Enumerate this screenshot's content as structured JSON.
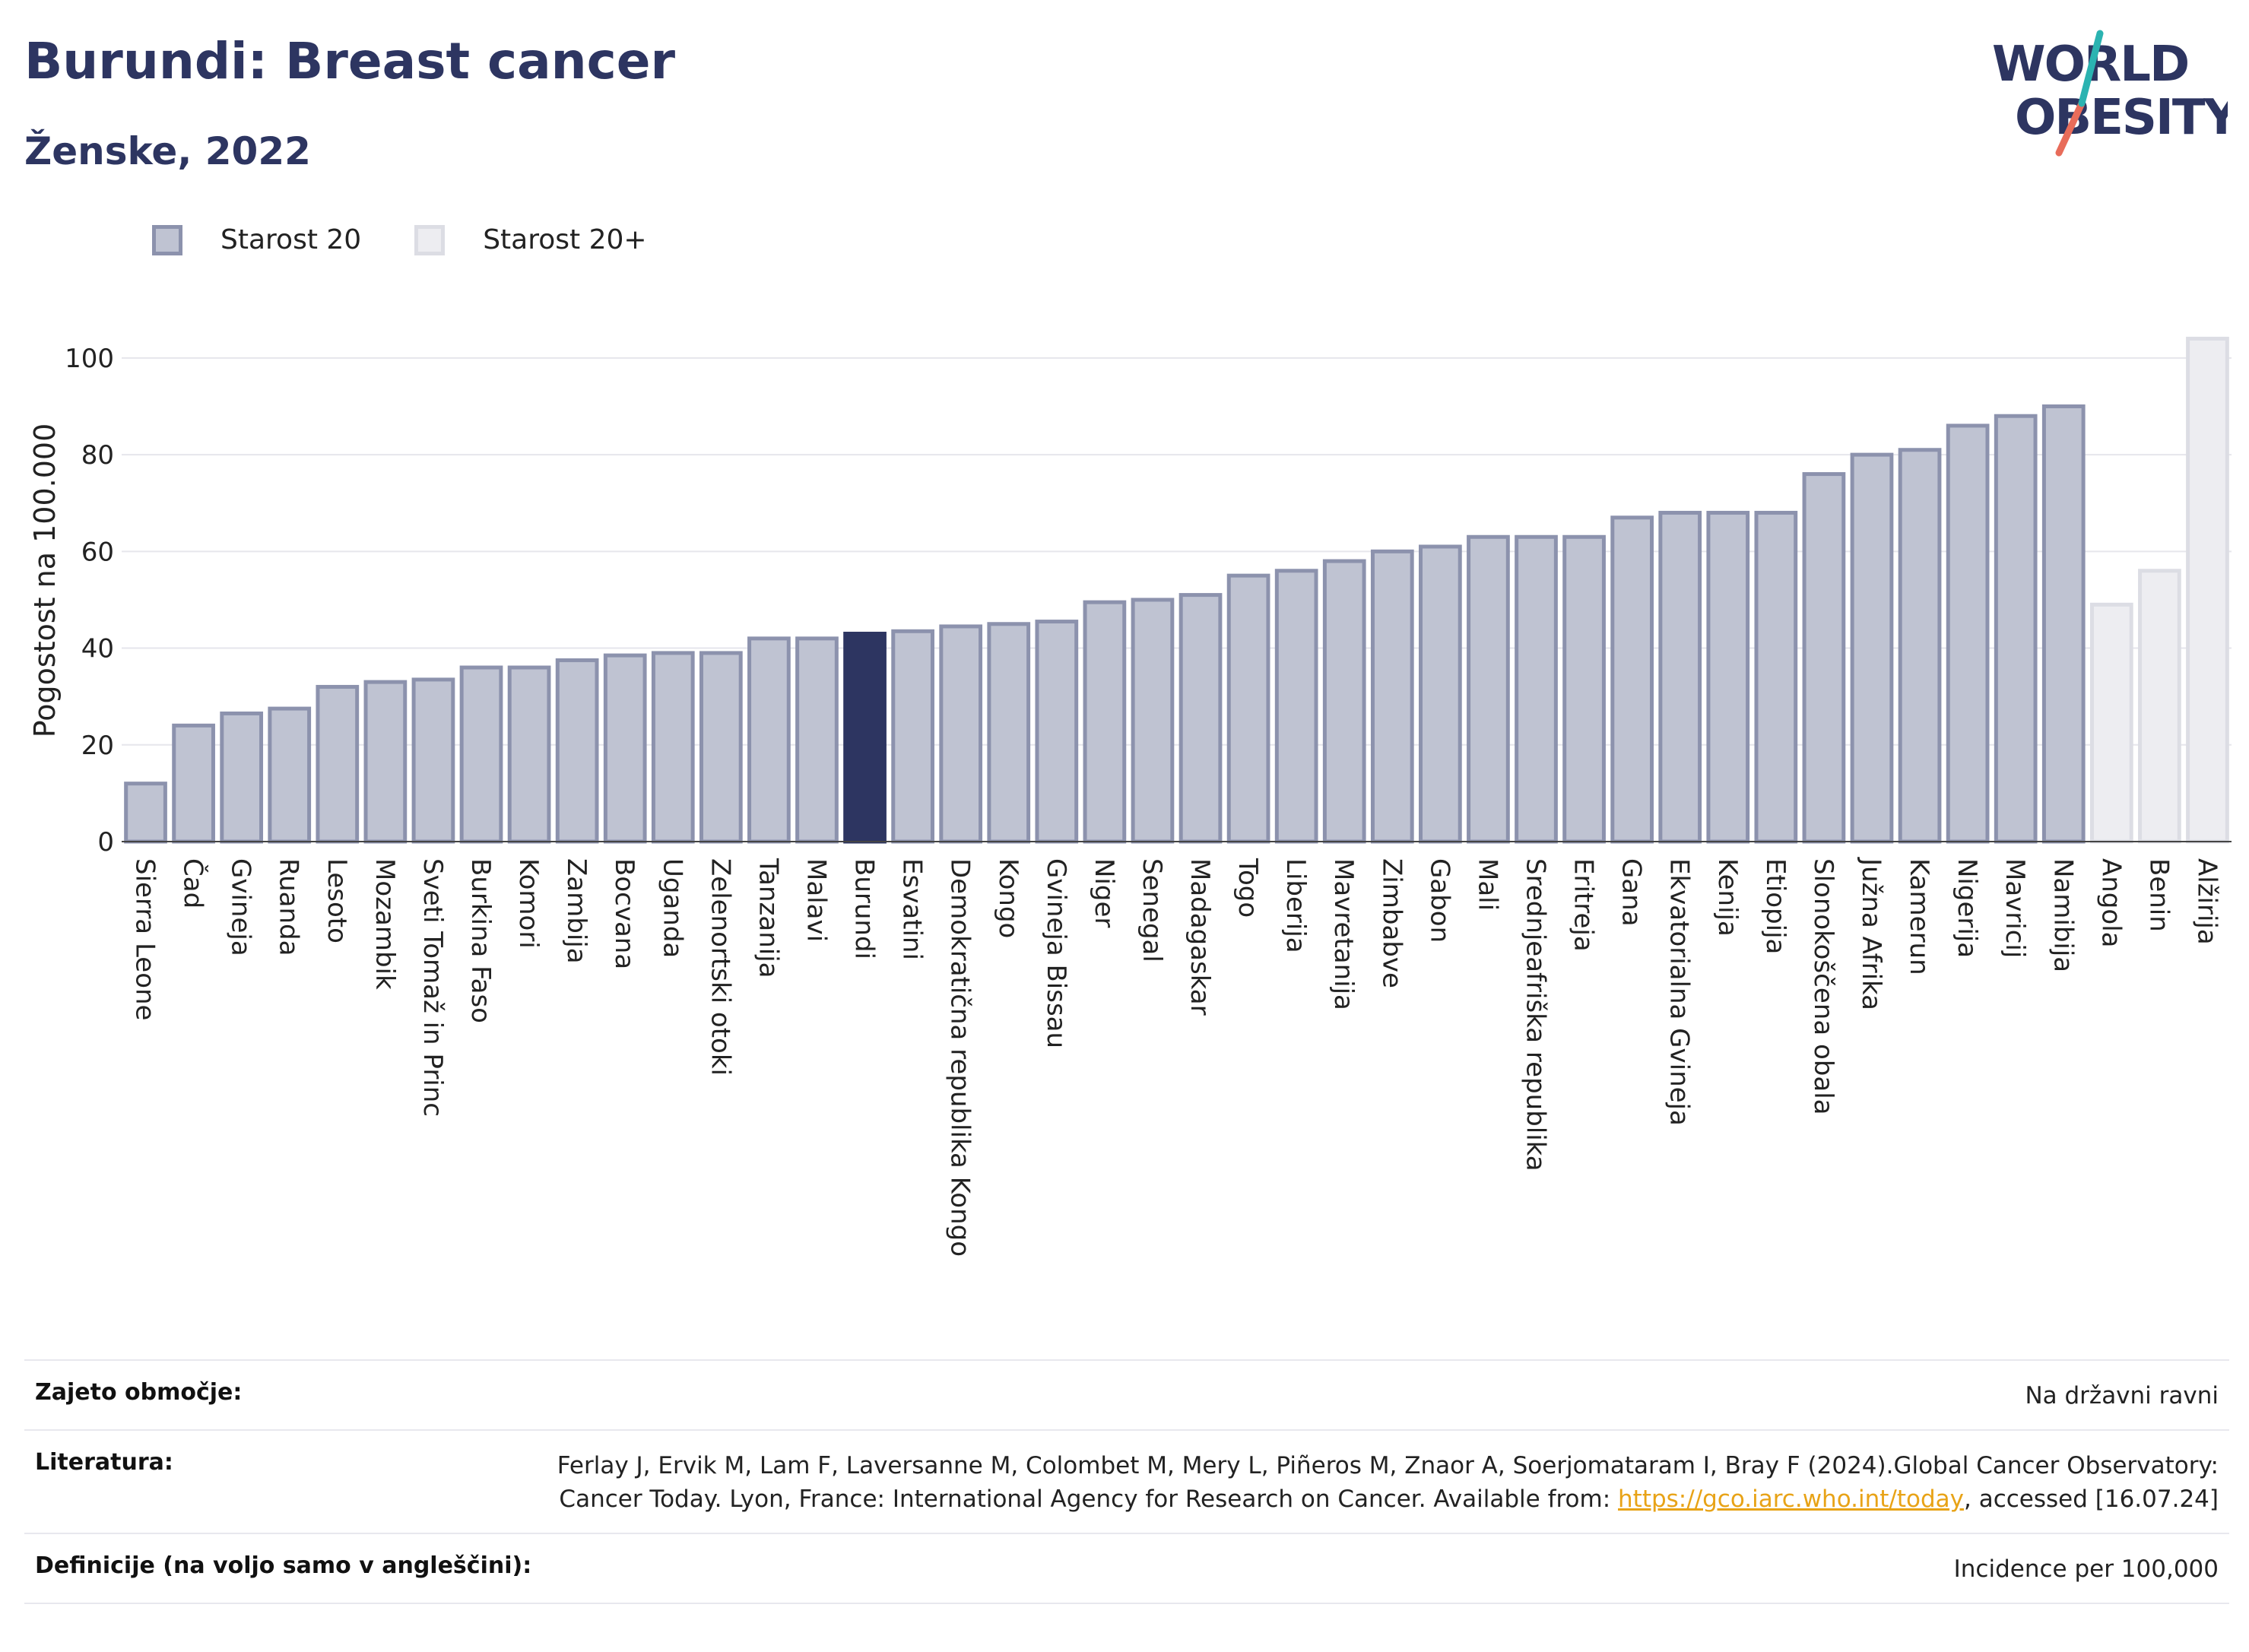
{
  "header": {
    "title": "Burundi: Breast cancer",
    "subtitle": "Ženske, 2022"
  },
  "logo": {
    "line1": "WORLD",
    "line2": "OBESITY"
  },
  "chart_data": {
    "type": "bar",
    "ylabel": "Pogostost na 100.000",
    "xlabel": "",
    "ylim": [
      0,
      108
    ],
    "yticks": [
      0,
      20,
      40,
      60,
      80,
      100
    ],
    "grid": true,
    "legend_position": "top-left",
    "highlight": "Burundi",
    "colors": {
      "series_a": "#bfc3d2",
      "series_a_border": "#8c92ad",
      "series_b": "#ededf1",
      "series_b_border": "#dcdde4",
      "highlight": "#2d3561"
    },
    "series": [
      {
        "name": "Starost 20",
        "categories": [
          "Sierra Leone",
          "Čad",
          "Gvineja",
          "Ruanda",
          "Lesoto",
          "Mozambik",
          "Sveti Tomaž in Princ",
          "Burkina Faso",
          "Komori",
          "Zambija",
          "Bocvana",
          "Uganda",
          "Zelenortski otoki",
          "Tanzanija",
          "Malavi",
          "Burundi",
          "Esvatini",
          "Demokratična republika Kongo",
          "Kongo",
          "Gvineja Bissau",
          "Niger",
          "Senegal",
          "Madagaskar",
          "Togo",
          "Liberija",
          "Mavretanija",
          "Zimbabve",
          "Gabon",
          "Mali",
          "Srednjeafriška republika",
          "Eritreja",
          "Gana",
          "Ekvatorialna Gvineja",
          "Kenija",
          "Etiopija",
          "Slonokoščena obala",
          "Južna Afrika",
          "Kamerun",
          "Nigerija",
          "Mavricij",
          "Namibija"
        ],
        "values": [
          12,
          24,
          26.5,
          27.5,
          32,
          33,
          33.5,
          36,
          36,
          37.5,
          38.5,
          39,
          39,
          42,
          42,
          43,
          43.5,
          44.5,
          45,
          45.5,
          49.5,
          50,
          51,
          55,
          56,
          58,
          60,
          61,
          63,
          63,
          63,
          67,
          68,
          68,
          68,
          76,
          80,
          81,
          86,
          88,
          90
        ]
      },
      {
        "name": "Starost 20+",
        "categories": [
          "Angola",
          "Benin",
          "Alžirija"
        ],
        "values": [
          49,
          56,
          104
        ]
      }
    ]
  },
  "info": {
    "rows": [
      {
        "label": "Zajeto območje:",
        "value": "Na državni ravni"
      },
      {
        "label": "Literatura:",
        "value_before": "Ferlay J, Ervik M, Lam F, Laversanne M, Colombet M, Mery L, Piñeros M, Znaor A, Soerjomataram I, Bray F (2024).Global Cancer Observatory: Cancer Today. Lyon, France: International Agency for Research on Cancer. Available from: ",
        "link": "https://gco.iarc.who.int/today",
        "value_after": ", accessed [16.07.24]"
      },
      {
        "label": "Definicije (na voljo samo v angleščini):",
        "value": "Incidence per 100,000"
      }
    ]
  }
}
